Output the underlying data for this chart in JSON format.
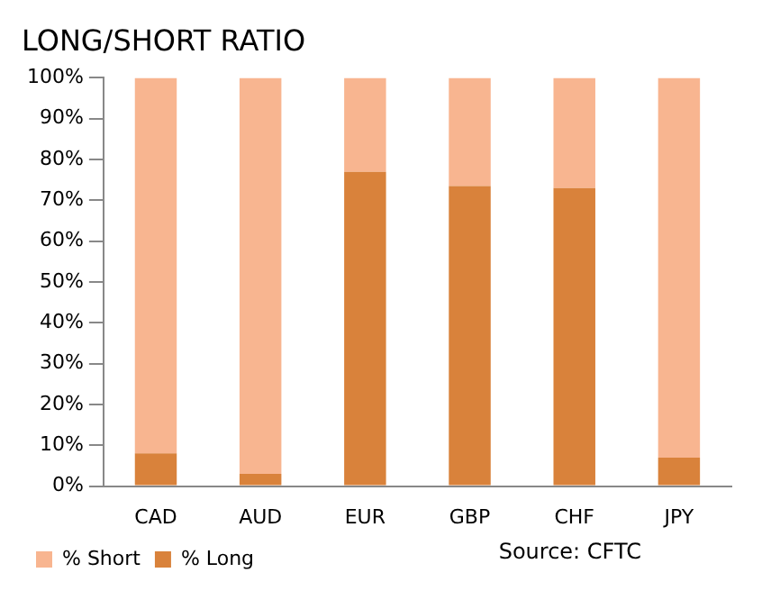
{
  "chart_data": {
    "type": "bar",
    "stacked": true,
    "title": "LONG/SHORT RATIO",
    "categories": [
      "CAD",
      "AUD",
      "EUR",
      "GBP",
      "CHF",
      "JPY"
    ],
    "series": [
      {
        "name": "% Long",
        "color": "#d9823b",
        "values": [
          8,
          3,
          77,
          73.5,
          73,
          7
        ]
      },
      {
        "name": "% Short",
        "color": "#f8b590",
        "values": [
          92,
          97,
          23,
          26.5,
          27,
          93
        ]
      }
    ],
    "ylim": [
      0,
      100
    ],
    "yticks": [
      {
        "value": 0,
        "label": "0%"
      },
      {
        "value": 10,
        "label": "10%"
      },
      {
        "value": 20,
        "label": "20%"
      },
      {
        "value": 30,
        "label": "30%"
      },
      {
        "value": 40,
        "label": "40%"
      },
      {
        "value": 50,
        "label": "50%"
      },
      {
        "value": 60,
        "label": "60%"
      },
      {
        "value": 70,
        "label": "70%"
      },
      {
        "value": 80,
        "label": "80%"
      },
      {
        "value": 90,
        "label": "90%"
      },
      {
        "value": 100,
        "label": "100%"
      }
    ],
    "grid": false,
    "legend": "bottom left",
    "annotations": [
      "Source: CFTC"
    ]
  }
}
